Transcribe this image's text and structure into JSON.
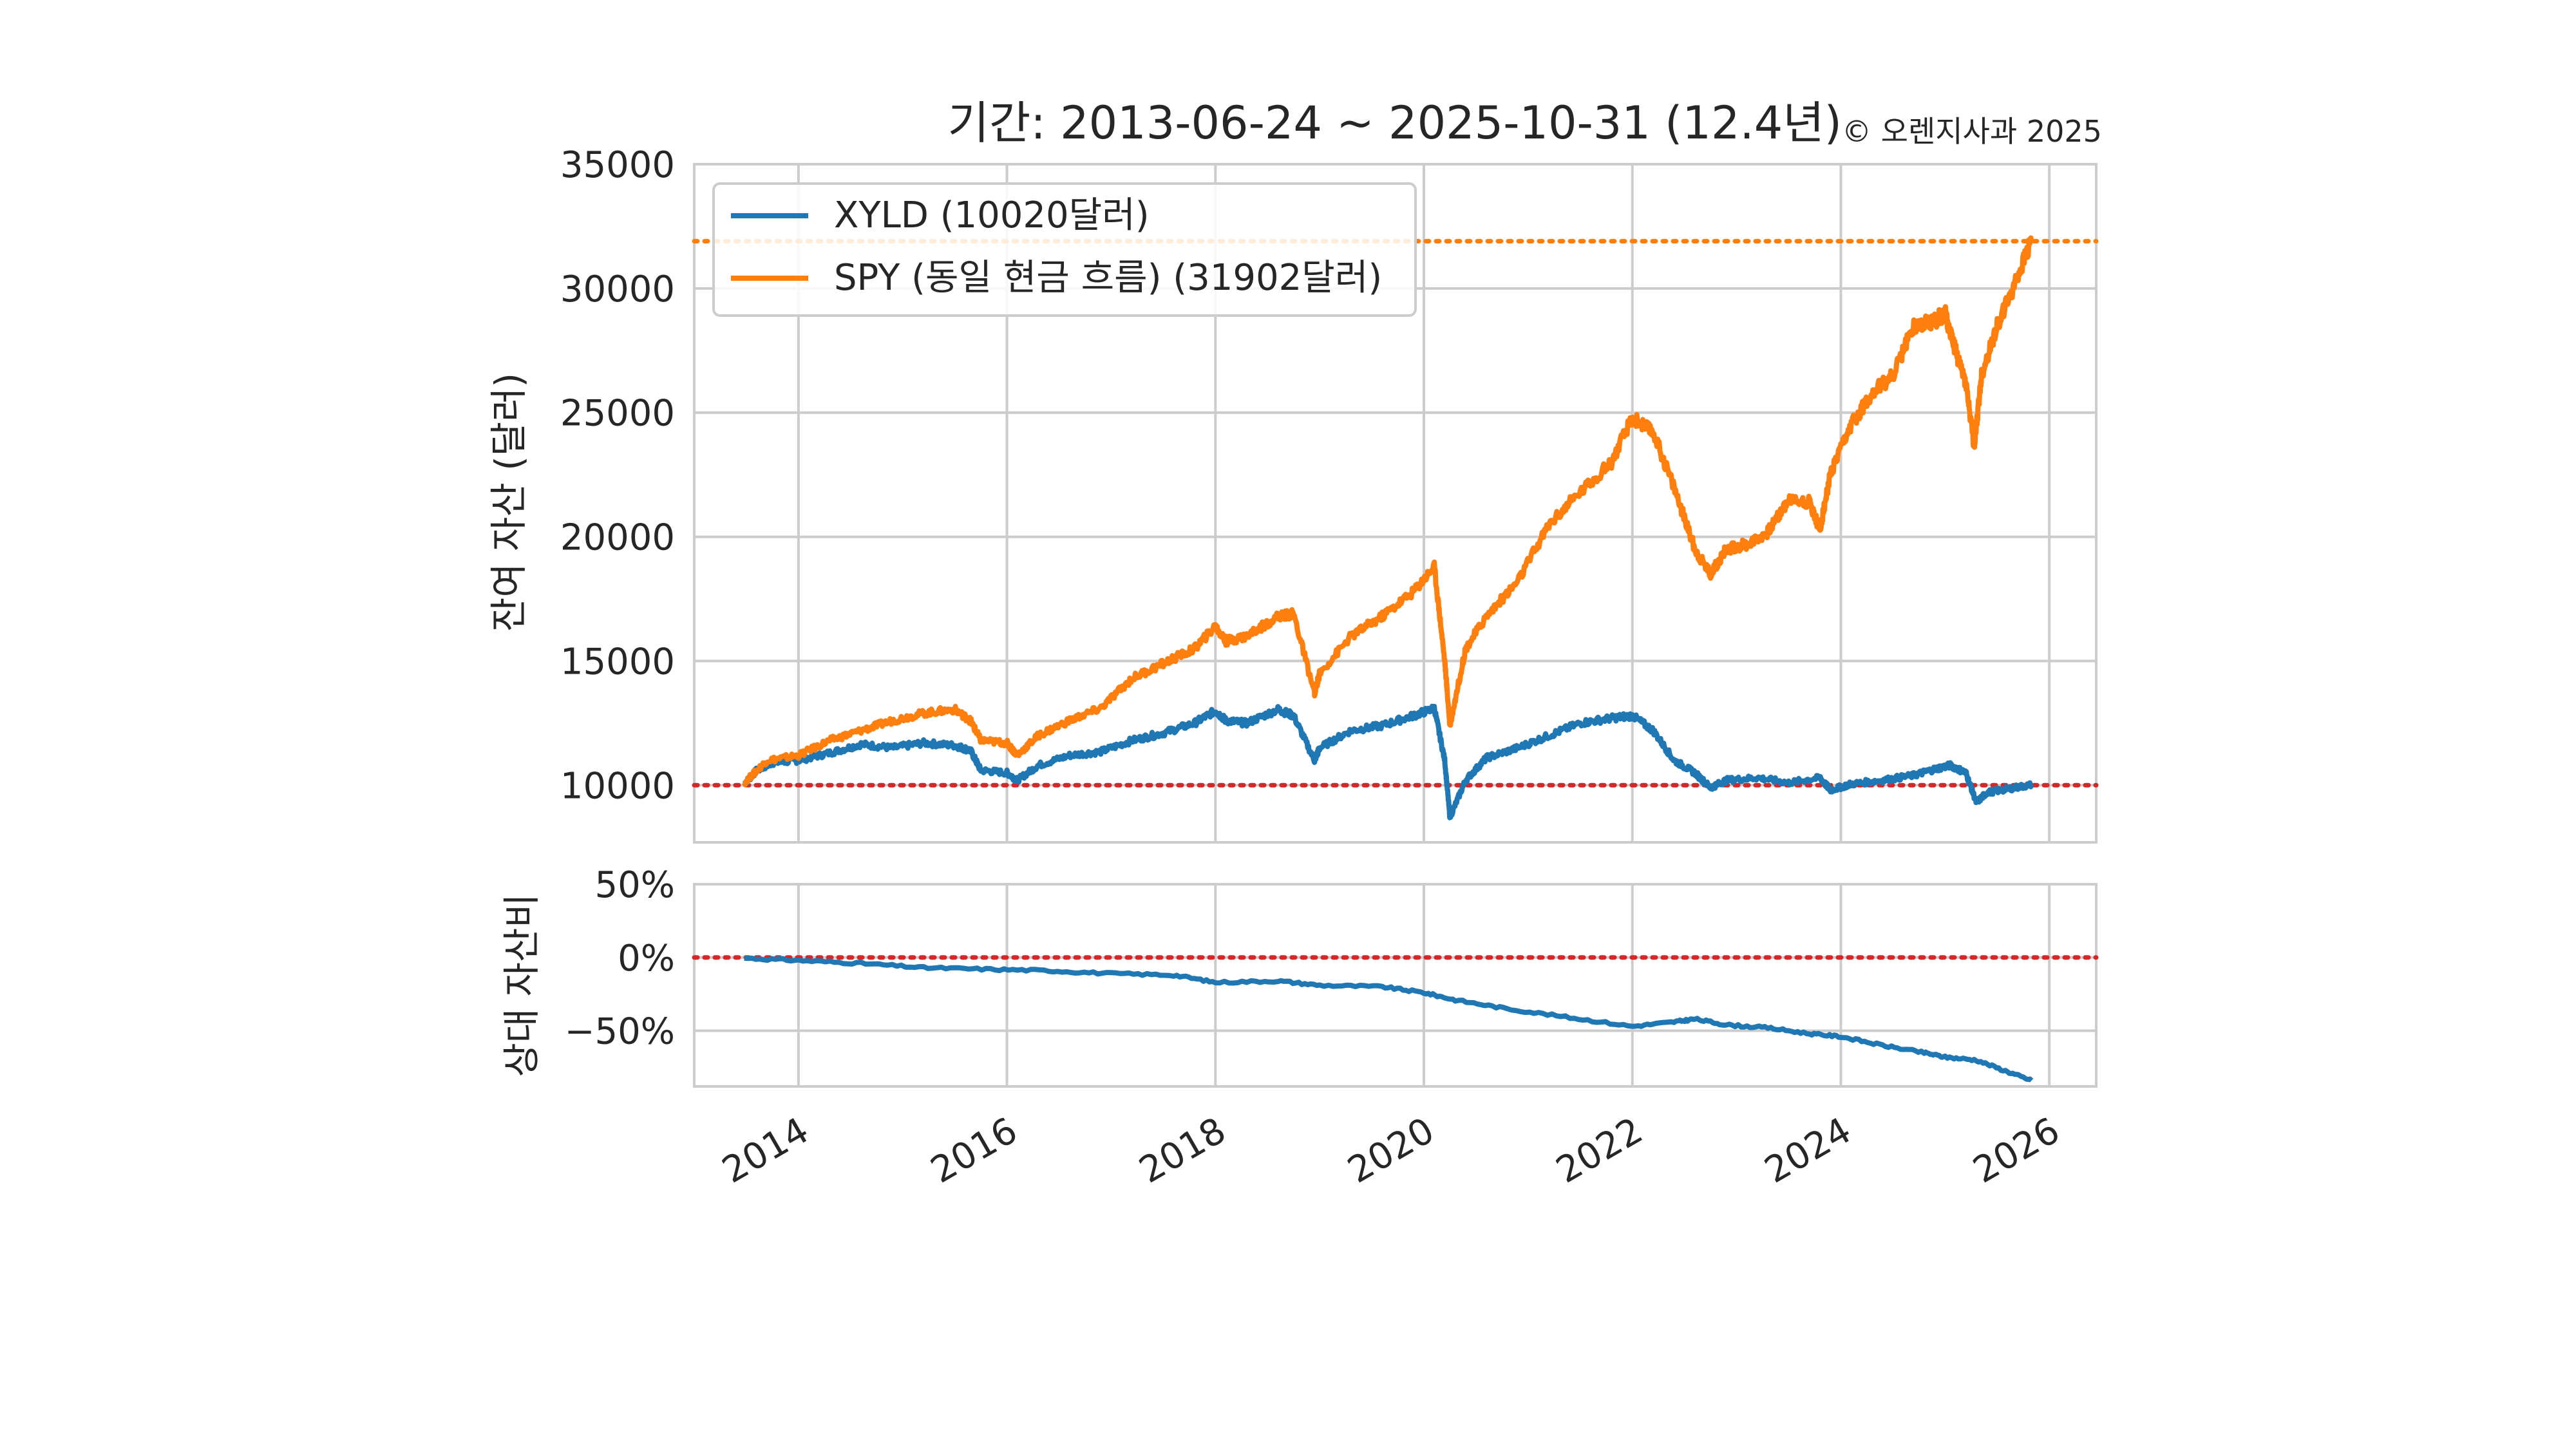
{
  "chart_data": [
    {
      "type": "line",
      "title": "기간: 2013-06-24 ~ 2025-10-31 (12.4년)",
      "copyright": "© 오렌지사과 2025",
      "ylabel": "잔여 자산 (달러)",
      "xlabel": "",
      "xlim": [
        2013.0,
        2026.45
      ],
      "ylim": [
        7700,
        35000
      ],
      "yticks": [
        10000,
        15000,
        20000,
        25000,
        30000,
        35000
      ],
      "ytick_labels": [
        "10000",
        "15000",
        "20000",
        "25000",
        "30000",
        "35000"
      ],
      "xticks": [
        2014,
        2016,
        2018,
        2020,
        2022,
        2024,
        2026
      ],
      "xtick_labels": [
        "2014",
        "2016",
        "2018",
        "2020",
        "2022",
        "2024",
        "2026"
      ],
      "grid": true,
      "legend_position": "top-left",
      "reference_lines": [
        {
          "y": 10000,
          "color": "#d62728",
          "style": "dotted"
        },
        {
          "y": 31902,
          "color": "#ff7f0e",
          "style": "dotted"
        }
      ],
      "series": [
        {
          "name": "XYLD (10020달러)",
          "color": "#1f77b4",
          "x": [
            2013.48,
            2013.6,
            2013.75,
            2014.0,
            2014.3,
            2014.6,
            2014.9,
            2015.2,
            2015.5,
            2015.65,
            2015.75,
            2016.0,
            2016.1,
            2016.3,
            2016.6,
            2016.9,
            2017.2,
            2017.5,
            2017.8,
            2018.0,
            2018.1,
            2018.3,
            2018.6,
            2018.75,
            2018.95,
            2019.0,
            2019.3,
            2019.6,
            2019.9,
            2020.1,
            2020.2,
            2020.25,
            2020.4,
            2020.6,
            2020.9,
            2021.2,
            2021.5,
            2021.8,
            2022.0,
            2022.2,
            2022.4,
            2022.6,
            2022.75,
            2022.9,
            2023.2,
            2023.5,
            2023.8,
            2023.9,
            2024.1,
            2024.4,
            2024.7,
            2024.9,
            2025.05,
            2025.2,
            2025.3,
            2025.4,
            2025.6,
            2025.83
          ],
          "values": [
            10050,
            10600,
            10900,
            11000,
            11300,
            11650,
            11500,
            11700,
            11600,
            11400,
            10600,
            10500,
            10200,
            10800,
            11200,
            11350,
            11800,
            12100,
            12500,
            13000,
            12600,
            12500,
            13050,
            12800,
            11000,
            11500,
            12200,
            12400,
            12800,
            13100,
            11000,
            8700,
            10200,
            11100,
            11500,
            12000,
            12500,
            12700,
            12800,
            12200,
            11000,
            10500,
            9900,
            10200,
            10300,
            10100,
            10300,
            9800,
            10050,
            10200,
            10400,
            10650,
            10800,
            10500,
            9300,
            9700,
            9850,
            10020
          ]
        },
        {
          "name": "SPY (동일 현금 흐름) (31902달러)",
          "color": "#ff7f0e",
          "x": [
            2013.48,
            2013.7,
            2014.0,
            2014.3,
            2014.6,
            2014.9,
            2015.2,
            2015.5,
            2015.65,
            2015.75,
            2016.0,
            2016.1,
            2016.3,
            2016.6,
            2016.9,
            2017.2,
            2017.5,
            2017.8,
            2018.0,
            2018.1,
            2018.3,
            2018.6,
            2018.75,
            2018.95,
            2019.0,
            2019.3,
            2019.6,
            2019.9,
            2020.1,
            2020.2,
            2020.25,
            2020.4,
            2020.6,
            2020.9,
            2021.2,
            2021.5,
            2021.8,
            2022.0,
            2022.2,
            2022.4,
            2022.6,
            2022.75,
            2022.9,
            2023.1,
            2023.3,
            2023.5,
            2023.7,
            2023.8,
            2023.9,
            2024.1,
            2024.3,
            2024.5,
            2024.7,
            2024.9,
            2025.0,
            2025.1,
            2025.2,
            2025.28,
            2025.35,
            2025.5,
            2025.65,
            2025.83
          ],
          "values": [
            10100,
            11000,
            11200,
            11800,
            12200,
            12600,
            12900,
            13050,
            12600,
            11800,
            11700,
            11200,
            12000,
            12600,
            13100,
            14300,
            14900,
            15500,
            16400,
            15800,
            16000,
            16800,
            16900,
            13700,
            14500,
            16000,
            16800,
            17800,
            18800,
            15000,
            12400,
            15500,
            16800,
            18200,
            20500,
            21800,
            23000,
            24800,
            24200,
            22000,
            19500,
            18500,
            19500,
            19700,
            20200,
            21500,
            21400,
            20300,
            22500,
            24500,
            25800,
            26500,
            28500,
            28700,
            29000,
            27500,
            26200,
            23600,
            26500,
            28500,
            30000,
            31902
          ]
        }
      ]
    },
    {
      "type": "line",
      "ylabel": "상대 자산비",
      "xlabel": "",
      "xlim": [
        2013.0,
        2026.45
      ],
      "ylim": [
        -88,
        50
      ],
      "yticks": [
        -50,
        0,
        50
      ],
      "ytick_labels": [
        "−50%",
        "0%",
        "50%"
      ],
      "xticks": [
        2014,
        2016,
        2018,
        2020,
        2022,
        2024,
        2026
      ],
      "grid": true,
      "reference_lines": [
        {
          "y": 0,
          "color": "#d62728",
          "style": "dotted"
        }
      ],
      "series": [
        {
          "name": "상대 자산비",
          "color": "#1f77b4",
          "x": [
            2013.48,
            2014.0,
            2014.6,
            2015.2,
            2015.8,
            2016.4,
            2017.0,
            2017.6,
            2018.0,
            2018.6,
            2019.0,
            2019.6,
            2020.0,
            2020.3,
            2020.8,
            2021.4,
            2022.0,
            2022.4,
            2022.6,
            2022.9,
            2023.3,
            2023.7,
            2024.0,
            2024.4,
            2024.8,
            2025.0,
            2025.3,
            2025.6,
            2025.83
          ],
          "values": [
            -0.5,
            -2,
            -4,
            -7,
            -8,
            -9,
            -11,
            -12,
            -17,
            -16,
            -19,
            -20,
            -24,
            -29,
            -35,
            -41,
            -47,
            -44,
            -42,
            -46,
            -48,
            -52,
            -54,
            -60,
            -65,
            -68,
            -70,
            -78,
            -84
          ]
        }
      ]
    }
  ]
}
